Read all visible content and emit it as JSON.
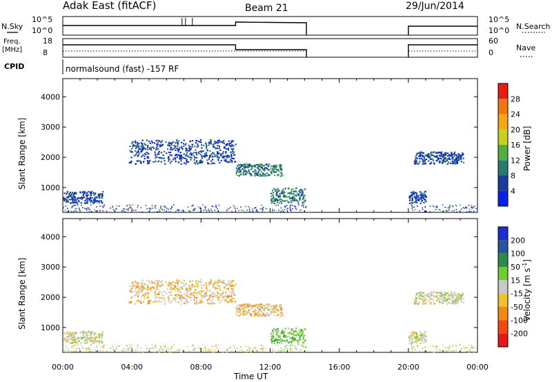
{
  "header": {
    "title": "Adak East (fitACF)",
    "beam": "Beam 21",
    "date": "29/Jun/2014"
  },
  "summary_labels": {
    "nsky": "N.Sky",
    "nsearch": "N.Search",
    "freq_line1": "Freq.",
    "freq_line2": "[MHz]",
    "nave": "Nave",
    "cpid": "CPID",
    "cpid_value": "normalsound (fast) -157 RF",
    "noise_tick_high": "10^5",
    "noise_tick_low": "10^0",
    "freq_tick_high": "18",
    "freq_tick_low": "8",
    "nave_tick_high": "60",
    "nave_tick_low": "0"
  },
  "axes": {
    "ylabel": "Slant Range [km]",
    "xlabel": "Time UT",
    "xticks": [
      "00:00",
      "04:00",
      "08:00",
      "12:00",
      "16:00",
      "20:00",
      "00:00"
    ],
    "yticks": [
      "1000",
      "2000",
      "3000",
      "4000"
    ]
  },
  "colorbars": {
    "power": {
      "label": "Power [dB]",
      "ticks": [
        "4",
        "8",
        "12",
        "16",
        "20",
        "24",
        "28"
      ],
      "colors": [
        "#0a22e8",
        "#1c3c9c",
        "#2a7a6e",
        "#4fae44",
        "#c8d020",
        "#f2a81a",
        "#f0760e",
        "#e81c10"
      ]
    },
    "velocity": {
      "label_main": "Velocity [m s",
      "label_sup": "-1",
      "label_end": "]",
      "ticks": [
        "200",
        "100",
        "50",
        "15",
        "-15",
        "-50",
        "-100",
        "-200"
      ],
      "colors": [
        "#1c2ed0",
        "#2a54a0",
        "#2e8a4a",
        "#70cc30",
        "#c8c8c8",
        "#f0c030",
        "#f28a10",
        "#f04a10",
        "#e81818"
      ]
    }
  },
  "chart_data": {
    "type": "heatmap",
    "title": "Adak East (fitACF)",
    "xlabel": "Time UT",
    "ylabel": "Slant Range [km]",
    "xlim_hours": [
      0,
      24
    ],
    "ylim_km": [
      180,
      4600
    ],
    "gaps_hours": [
      [
        14.1,
        20.0
      ]
    ],
    "echo_regions": [
      {
        "start": 0.0,
        "end": 2.3,
        "range_min": 500,
        "range_max": 900,
        "power_db": 6,
        "velocity": "-15 to 15"
      },
      {
        "start": 3.8,
        "end": 10.0,
        "range_min": 1800,
        "range_max": 2600,
        "power_db": 8,
        "velocity": "-15 to -50"
      },
      {
        "start": 10.0,
        "end": 12.7,
        "range_min": 1400,
        "range_max": 1800,
        "power_db": 10,
        "velocity": "-15 to -50"
      },
      {
        "start": 12.0,
        "end": 14.0,
        "range_min": 500,
        "range_max": 1000,
        "power_db": 12,
        "velocity": "15 to 50"
      },
      {
        "start": 20.0,
        "end": 21.0,
        "range_min": 500,
        "range_max": 900,
        "power_db": 8,
        "velocity": "-15 to 15"
      },
      {
        "start": 20.3,
        "end": 23.2,
        "range_min": 1800,
        "range_max": 2200,
        "power_db": 6,
        "velocity": "-15 to 15"
      }
    ],
    "power_colorbar_db": [
      4,
      8,
      12,
      16,
      20,
      24,
      28
    ],
    "velocity_colorbar_ms": [
      200,
      100,
      50,
      15,
      -15,
      -50,
      -100,
      -200
    ]
  }
}
